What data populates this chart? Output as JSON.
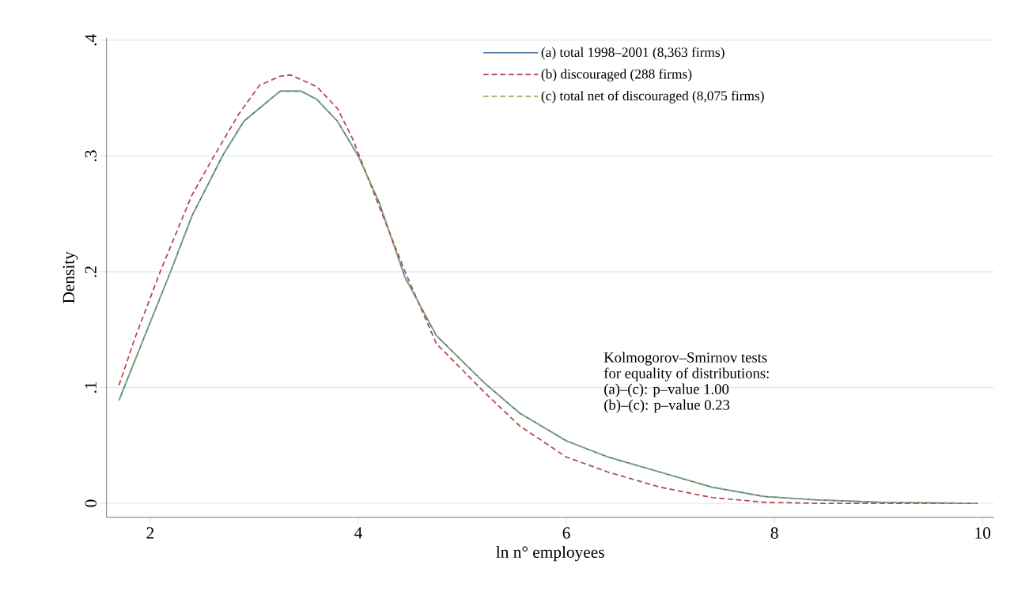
{
  "chart_data": {
    "type": "line",
    "xlabel": "ln  n° employees",
    "ylabel": "Density",
    "xlim": [
      1.58,
      10.11
    ],
    "ylim": [
      -0.012,
      0.402
    ],
    "xticks": [
      2,
      4,
      6,
      8,
      10
    ],
    "yticks": [
      0,
      {
        "value": 0.1,
        "label": ".1"
      },
      {
        "value": 0.2,
        "label": ".2"
      },
      {
        "value": 0.3,
        "label": ".3"
      },
      {
        "value": 0.4,
        "label": ".4"
      }
    ],
    "grid": "y",
    "legend": "top right",
    "series": [
      {
        "name": "(a) total 1998–2001 (8,363 firms)",
        "color": "#4a6fa5",
        "line_style": "solid",
        "x": [
          1.7,
          1.9,
          2.2,
          2.4,
          2.7,
          2.9,
          3.1,
          3.25,
          3.45,
          3.6,
          3.8,
          4.0,
          4.2,
          4.45,
          4.75,
          5.2,
          5.55,
          6.0,
          6.4,
          6.9,
          7.4,
          7.9,
          8.4,
          9.0,
          9.95
        ],
        "values": [
          0.089,
          0.134,
          0.201,
          0.248,
          0.301,
          0.33,
          0.345,
          0.356,
          0.356,
          0.349,
          0.33,
          0.3,
          0.26,
          0.195,
          0.145,
          0.105,
          0.078,
          0.054,
          0.04,
          0.027,
          0.014,
          0.006,
          0.003,
          0.001,
          0
        ]
      },
      {
        "name": "(b) discouraged (288 firms)",
        "color": "#b5474b",
        "line_style": "dashed",
        "x": [
          1.7,
          1.85,
          2.1,
          2.4,
          2.6,
          2.85,
          3.05,
          3.25,
          3.35,
          3.6,
          3.8,
          3.95,
          4.15,
          4.45,
          4.75,
          5.2,
          5.55,
          6.0,
          6.4,
          6.9,
          7.4,
          7.9,
          8.4,
          9.95
        ],
        "values": [
          0.102,
          0.142,
          0.201,
          0.266,
          0.298,
          0.336,
          0.361,
          0.369,
          0.37,
          0.36,
          0.341,
          0.314,
          0.268,
          0.2,
          0.138,
          0.097,
          0.067,
          0.04,
          0.027,
          0.014,
          0.005,
          0.001,
          0,
          0
        ]
      },
      {
        "name": "(c) total net of discouraged (8,075 firms)",
        "color": "#8db26a",
        "line_style": "dashed",
        "x": [
          1.7,
          1.9,
          2.2,
          2.4,
          2.7,
          2.9,
          3.1,
          3.25,
          3.45,
          3.6,
          3.8,
          4.0,
          4.2,
          4.45,
          4.75,
          5.2,
          5.55,
          6.0,
          6.4,
          6.9,
          7.4,
          7.9,
          8.4,
          9.0,
          9.95
        ],
        "values": [
          0.089,
          0.134,
          0.201,
          0.248,
          0.301,
          0.33,
          0.345,
          0.356,
          0.356,
          0.349,
          0.33,
          0.3,
          0.26,
          0.195,
          0.145,
          0.105,
          0.078,
          0.054,
          0.04,
          0.027,
          0.014,
          0.006,
          0.003,
          0.001,
          0
        ]
      }
    ],
    "annotations": [
      "Kolmogorov–Smirnov tests",
      "for equality of distributions:",
      "(a)–(c): p–value  1.00",
      "(b)–(c): p–value  0.23"
    ]
  }
}
